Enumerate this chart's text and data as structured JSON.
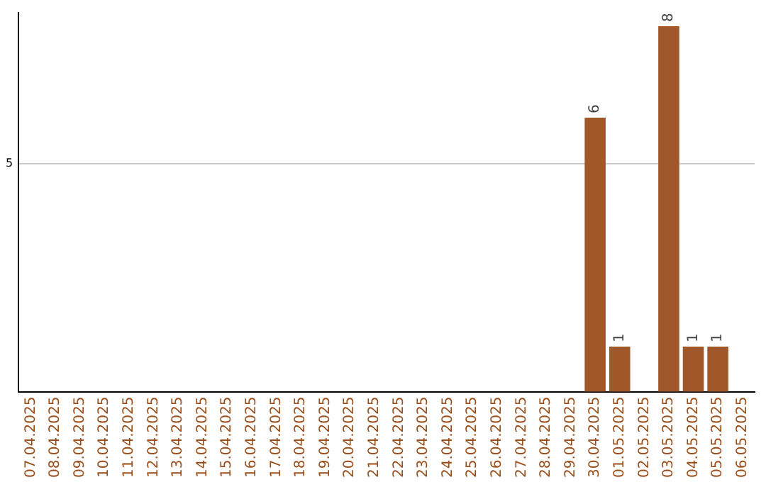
{
  "chart_data": {
    "type": "bar",
    "categories": [
      "07.04.2025",
      "08.04.2025",
      "09.04.2025",
      "10.04.2025",
      "11.04.2025",
      "12.04.2025",
      "13.04.2025",
      "14.04.2025",
      "15.04.2025",
      "16.04.2025",
      "17.04.2025",
      "18.04.2025",
      "19.04.2025",
      "20.04.2025",
      "21.04.2025",
      "22.04.2025",
      "23.04.2025",
      "24.04.2025",
      "25.04.2025",
      "26.04.2025",
      "27.04.2025",
      "28.04.2025",
      "29.04.2025",
      "30.04.2025",
      "01.05.2025",
      "02.05.2025",
      "03.05.2025",
      "04.05.2025",
      "05.05.2025",
      "06.05.2025"
    ],
    "values": [
      null,
      null,
      null,
      null,
      null,
      null,
      null,
      null,
      null,
      null,
      null,
      null,
      null,
      null,
      null,
      null,
      null,
      null,
      null,
      null,
      null,
      null,
      null,
      6,
      1,
      null,
      8,
      1,
      1,
      null
    ],
    "color": "#a0582a",
    "ylim": [
      0,
      8.3
    ],
    "yticks": [
      {
        "value": 0,
        "label": null
      },
      5
    ],
    "grid": "y",
    "data_labels": true,
    "legend": false
  }
}
